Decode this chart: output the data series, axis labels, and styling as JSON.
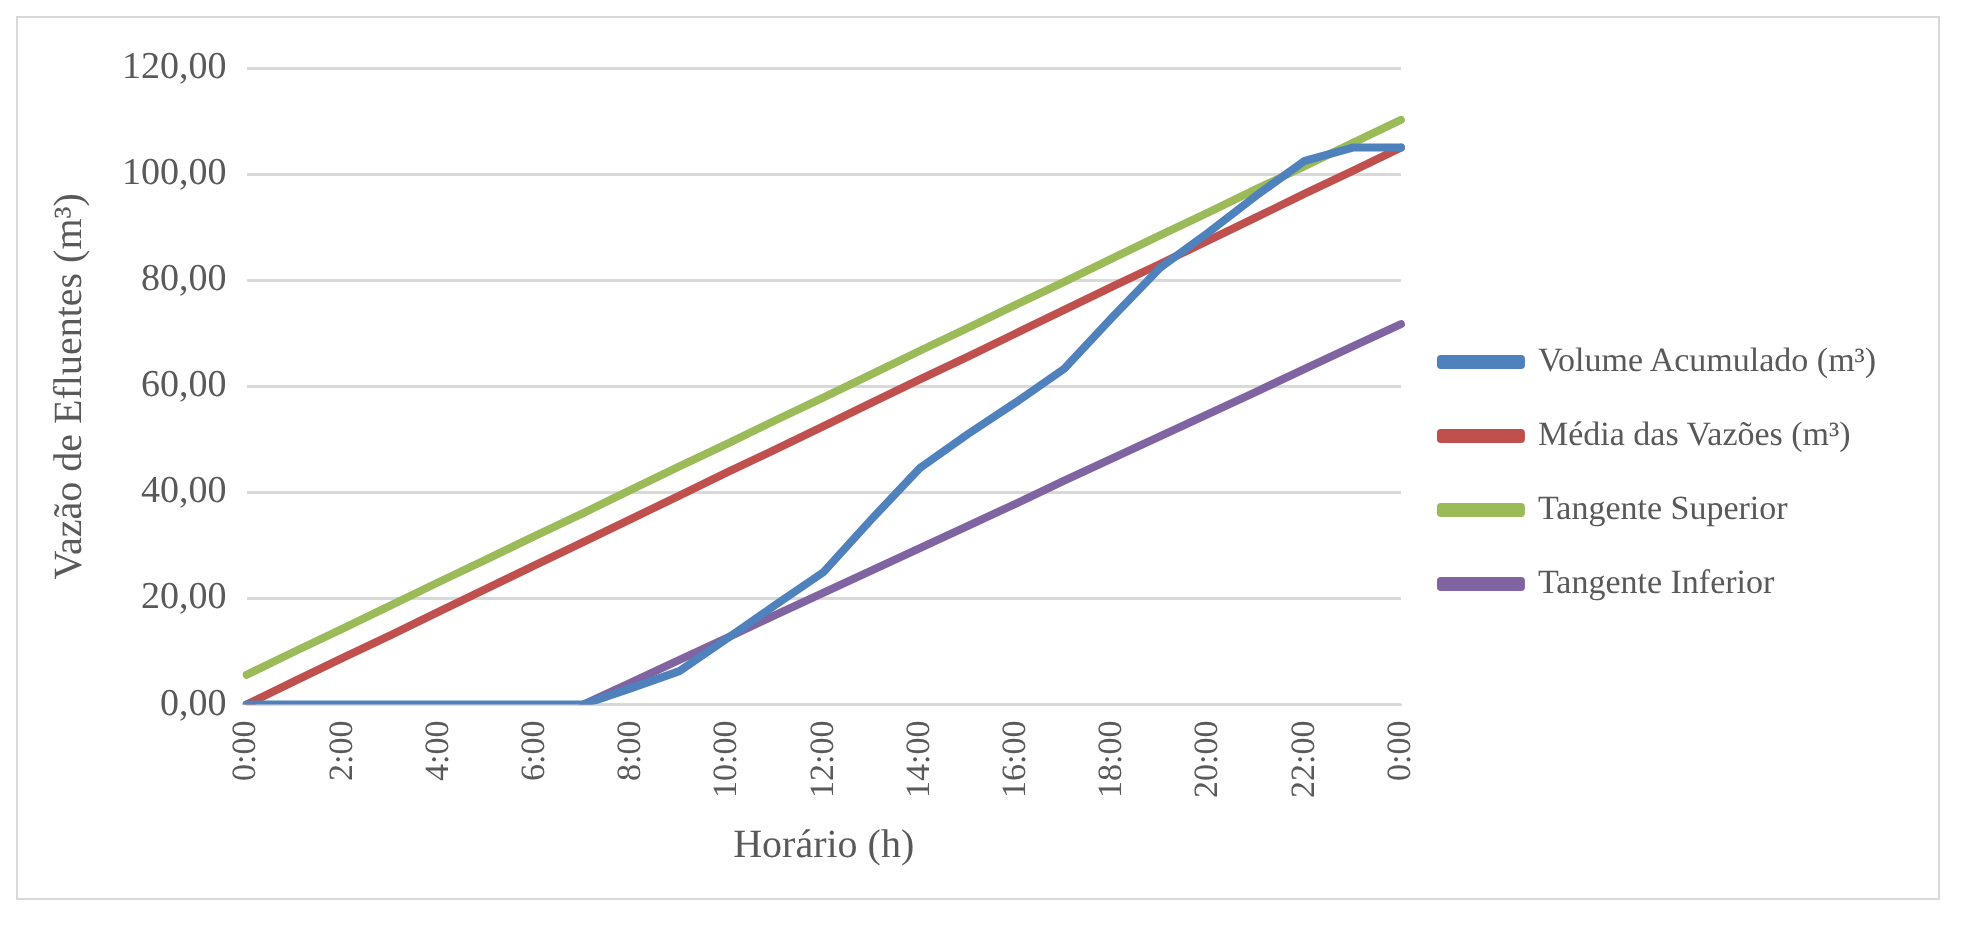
{
  "chart_data": {
    "type": "line",
    "xlabel": "Horário (h)",
    "ylabel": "Vazão de Efluentes (m³)",
    "categories": [
      "0:00",
      null,
      "2:00",
      null,
      "4:00",
      null,
      "6:00",
      null,
      "8:00",
      null,
      "10:00",
      null,
      "12:00",
      null,
      "14:00",
      null,
      "16:00",
      null,
      "18:00",
      null,
      "20:00",
      null,
      "22:00",
      null,
      "0:00"
    ],
    "series": [
      {
        "name": "Volume Acumulado (m³)",
        "color": "#4f81bd",
        "values": [
          0,
          0,
          0,
          0,
          0,
          0,
          0,
          0,
          3.1,
          6.3,
          12.5,
          18.8,
          25,
          35,
          44.6,
          51,
          57,
          63.3,
          73,
          82.4,
          89,
          96,
          102.5,
          105,
          105
        ]
      },
      {
        "name": "Média das Vazões (m³)",
        "color": "#c0504d",
        "values": [
          0,
          4.4,
          8.8,
          13.1,
          17.5,
          21.9,
          26.3,
          30.6,
          35,
          39.4,
          43.8,
          48.1,
          52.5,
          56.9,
          61.3,
          65.6,
          70,
          74.4,
          78.8,
          83.1,
          87.5,
          91.9,
          96.3,
          100.6,
          105
        ]
      },
      {
        "name": "Tangente Superior",
        "color": "#9bbb59",
        "values": [
          5.6,
          10,
          14.3,
          18.7,
          23.1,
          27.4,
          31.8,
          36.1,
          40.5,
          44.9,
          49.2,
          53.6,
          57.9,
          62.3,
          66.7,
          71,
          75.4,
          79.7,
          84.1,
          88.5,
          92.8,
          97.2,
          101.5,
          105.9,
          110.2
        ]
      },
      {
        "name": "Tangente Inferior",
        "color": "#8064a2",
        "values": [
          null,
          null,
          null,
          null,
          null,
          null,
          null,
          0,
          4.2,
          8.4,
          12.6,
          16.9,
          21.1,
          25.3,
          29.5,
          33.7,
          37.9,
          42.2,
          46.4,
          50.6,
          54.8,
          59,
          63.3,
          67.5,
          71.7
        ]
      }
    ],
    "ylim": [
      0,
      120
    ],
    "yticks": [
      {
        "value": 0,
        "label": "0,00"
      },
      {
        "value": 20,
        "label": "20,00"
      },
      {
        "value": 40,
        "label": "40,00"
      },
      {
        "value": 60,
        "label": "60,00"
      },
      {
        "value": 80,
        "label": "80,00"
      },
      {
        "value": 100,
        "label": "100,00"
      },
      {
        "value": 120,
        "label": "120,00"
      }
    ],
    "grid": "y",
    "legend": "right",
    "marker": "none",
    "line_style": "solid"
  }
}
